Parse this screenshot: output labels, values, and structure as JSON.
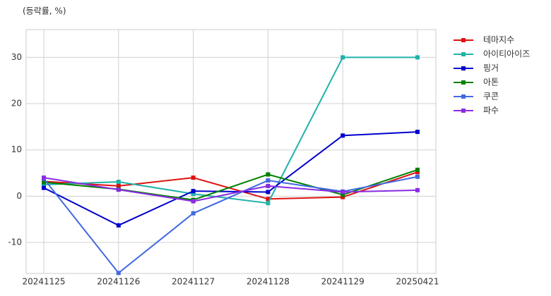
{
  "chart_data": {
    "type": "line",
    "y_label": "(등락률, %)",
    "categories": [
      "20241125",
      "20241126",
      "20241127",
      "20241128",
      "20241129",
      "20250421"
    ],
    "series": [
      {
        "name": "테마지수",
        "color": "#dd1111",
        "values": [
          3.2,
          2.2,
          4.0,
          -0.6,
          -0.2,
          5.2
        ]
      },
      {
        "name": "아이티아이즈",
        "color": "#20b2aa",
        "values": [
          2.5,
          3.1,
          0.5,
          -1.5,
          30.0,
          30.0
        ]
      },
      {
        "name": "핑거",
        "color": "#0000cd",
        "values": [
          1.8,
          -6.3,
          1.1,
          0.9,
          13.1,
          13.9
        ]
      },
      {
        "name": "아톤",
        "color": "#008000",
        "values": [
          3.0,
          1.5,
          -0.8,
          4.7,
          0.3,
          5.7
        ]
      },
      {
        "name": "쿠콘",
        "color": "#4169e1",
        "values": [
          3.8,
          -16.6,
          -3.7,
          3.4,
          1.0,
          4.2
        ]
      },
      {
        "name": "파수",
        "color": "#8a2be2",
        "values": [
          4.0,
          1.4,
          -1.1,
          2.2,
          0.9,
          1.3
        ]
      }
    ],
    "ylim": [
      -16.7,
      36
    ],
    "yticks": [
      -10,
      0,
      10,
      20,
      30
    ],
    "grid": true,
    "legend": "outside-right"
  }
}
